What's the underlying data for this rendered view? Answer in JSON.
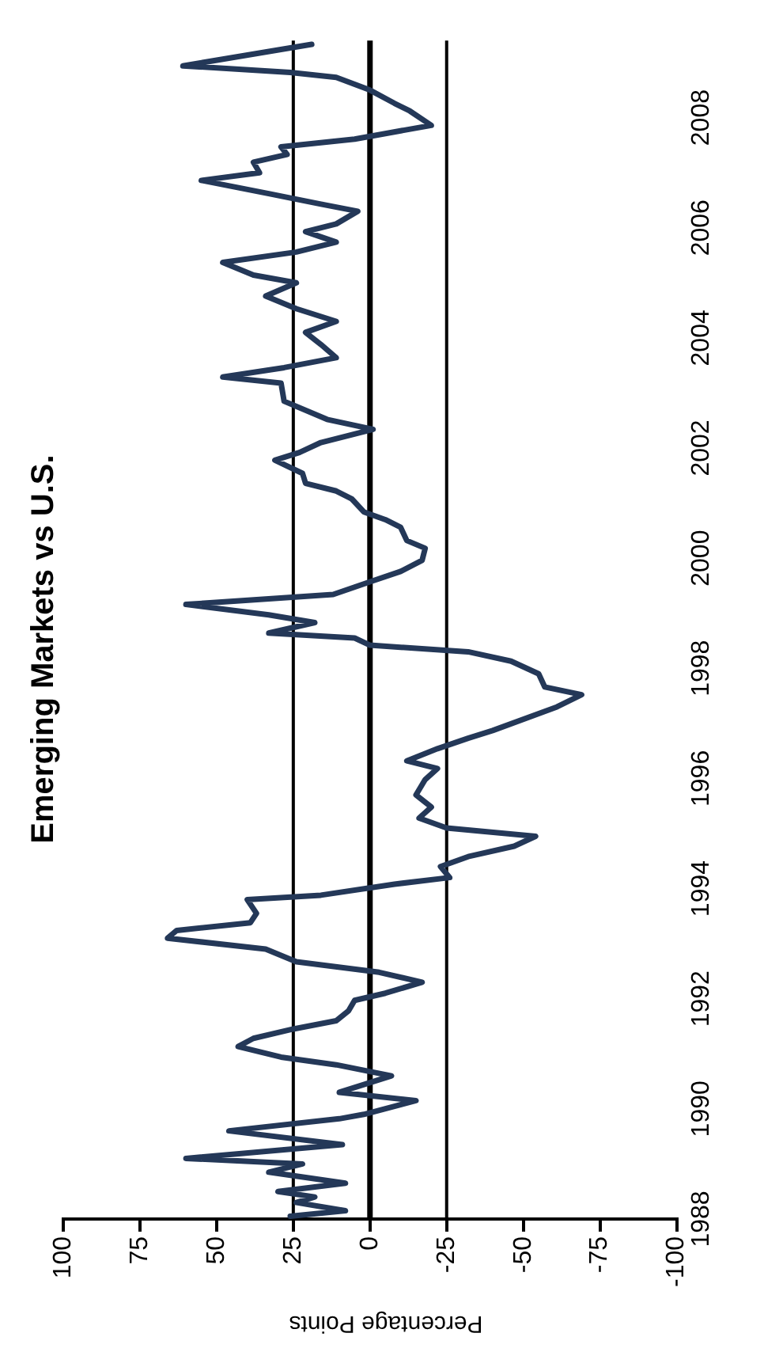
{
  "chart_data": {
    "type": "line",
    "orientation": "horizontal",
    "title": "Emerging Markets vs U.S.",
    "xlabel": "Percentage Points",
    "ylim": [
      1988,
      2009.4
    ],
    "yticks": [
      1988,
      1990,
      1992,
      1994,
      1996,
      1998,
      2000,
      2002,
      2004,
      2006,
      2008
    ],
    "xlim": [
      100,
      -100
    ],
    "xticks": [
      100,
      75,
      50,
      25,
      0,
      -25,
      -50,
      -75,
      -100
    ],
    "grid": false,
    "legend": false,
    "ref_lines": [
      {
        "axis": "x",
        "value": 25,
        "color": "#000000"
      },
      {
        "axis": "x",
        "value": 0,
        "color": "#000000"
      },
      {
        "axis": "x",
        "value": -25,
        "color": "#000000"
      }
    ],
    "series": [
      {
        "color": "#243858",
        "x": [
          1988.05,
          1988.15,
          1988.3,
          1988.4,
          1988.5,
          1988.65,
          1988.85,
          1989.0,
          1989.1,
          1989.35,
          1989.6,
          1989.82,
          1989.9,
          1990.15,
          1990.3,
          1990.44,
          1990.6,
          1990.8,
          1990.94,
          1991.13,
          1991.28,
          1991.45,
          1991.6,
          1991.78,
          1991.97,
          1992.1,
          1992.3,
          1992.48,
          1992.67,
          1992.9,
          1993.1,
          1993.24,
          1993.38,
          1993.55,
          1993.8,
          1993.88,
          1994.08,
          1994.2,
          1994.4,
          1994.58,
          1994.77,
          1994.95,
          1995.1,
          1995.28,
          1995.48,
          1995.7,
          1995.98,
          1996.18,
          1996.32,
          1996.54,
          1996.73,
          1996.87,
          1997.3,
          1997.52,
          1997.66,
          1997.9,
          1998.13,
          1998.3,
          1998.42,
          1998.55,
          1998.64,
          1998.83,
          1998.97,
          1999.16,
          1999.34,
          1999.57,
          1999.76,
          1999.96,
          2000.18,
          2000.32,
          2000.56,
          2000.7,
          2000.84,
          2001.08,
          2001.22,
          2001.36,
          2001.54,
          2001.78,
          2001.92,
          2002.1,
          2002.34,
          2002.52,
          2002.85,
          2003.18,
          2003.29,
          2003.46,
          2003.64,
          2003.88,
          2004.1,
          2004.3,
          2004.53,
          2004.76,
          2005.0,
          2005.14,
          2005.37,
          2005.56,
          2005.74,
          2005.93,
          2006.07,
          2006.3,
          2006.43,
          2006.62,
          2006.86,
          2007.0,
          2007.19,
          2007.33,
          2007.47,
          2007.61,
          2007.86,
          2008.12,
          2008.26,
          2008.5,
          2008.73,
          2008.82,
          2008.94,
          2009.33
        ],
        "values": [
          26,
          8,
          24,
          18,
          30,
          8,
          33,
          22,
          60,
          9,
          46,
          10,
          2,
          -15,
          10,
          2,
          -7,
          11,
          29,
          43,
          38,
          25,
          11,
          7,
          5,
          -5,
          -17,
          -3,
          24,
          34,
          66,
          63,
          39,
          37,
          40,
          16,
          -8,
          -26,
          -23,
          -32,
          -47,
          -54,
          -25,
          -16,
          -20,
          -15,
          -18,
          -22,
          -12,
          -22,
          -32,
          -40,
          -61,
          -69,
          -57,
          -55,
          -46,
          -32,
          0,
          5,
          33,
          18,
          33,
          60,
          12,
          0,
          -10,
          -17,
          -18,
          -12,
          -10,
          -5,
          2,
          6,
          11,
          21,
          22,
          31,
          23,
          16,
          -1,
          14,
          28,
          29,
          48,
          28,
          11,
          16,
          21,
          11,
          24,
          34,
          24,
          38,
          48,
          24,
          11,
          21,
          11,
          4,
          16,
          33,
          55,
          36,
          38,
          27,
          29,
          5,
          -20,
          -13,
          -8,
          0,
          11,
          26,
          61,
          19
        ]
      }
    ]
  }
}
